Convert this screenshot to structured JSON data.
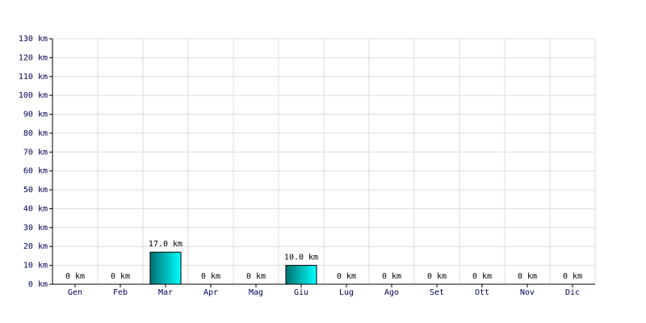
{
  "chart_data": {
    "type": "bar",
    "categories": [
      "Gen",
      "Feb",
      "Mar",
      "Apr",
      "Mag",
      "Giu",
      "Lug",
      "Ago",
      "Set",
      "Ott",
      "Nov",
      "Dic"
    ],
    "values": [
      0,
      0,
      17,
      0,
      0,
      10,
      0,
      0,
      0,
      0,
      0,
      0
    ],
    "value_labels": [
      "0 km",
      "0 km",
      "17.0 km",
      "0 km",
      "0 km",
      "10.0 km",
      "0 km",
      "0 km",
      "0 km",
      "0 km",
      "0 km",
      "0 km"
    ],
    "color": "#00c8c8",
    "ylim": [
      0,
      130
    ],
    "yticks": [
      {
        "value": 0,
        "label": "0 km"
      },
      {
        "value": 10,
        "label": "10 km"
      },
      {
        "value": 20,
        "label": "20 km"
      },
      {
        "value": 30,
        "label": "30 km"
      },
      {
        "value": 40,
        "label": "40 km"
      },
      {
        "value": 50,
        "label": "50 km"
      },
      {
        "value": 60,
        "label": "60 km"
      },
      {
        "value": 70,
        "label": "70 km"
      },
      {
        "value": 80,
        "label": "80 km"
      },
      {
        "value": 90,
        "label": "90 km"
      },
      {
        "value": 100,
        "label": "100 km"
      },
      {
        "value": 110,
        "label": "110 km"
      },
      {
        "value": 120,
        "label": "120 km"
      },
      {
        "value": 130,
        "label": "130 km"
      }
    ],
    "grid": true
  }
}
